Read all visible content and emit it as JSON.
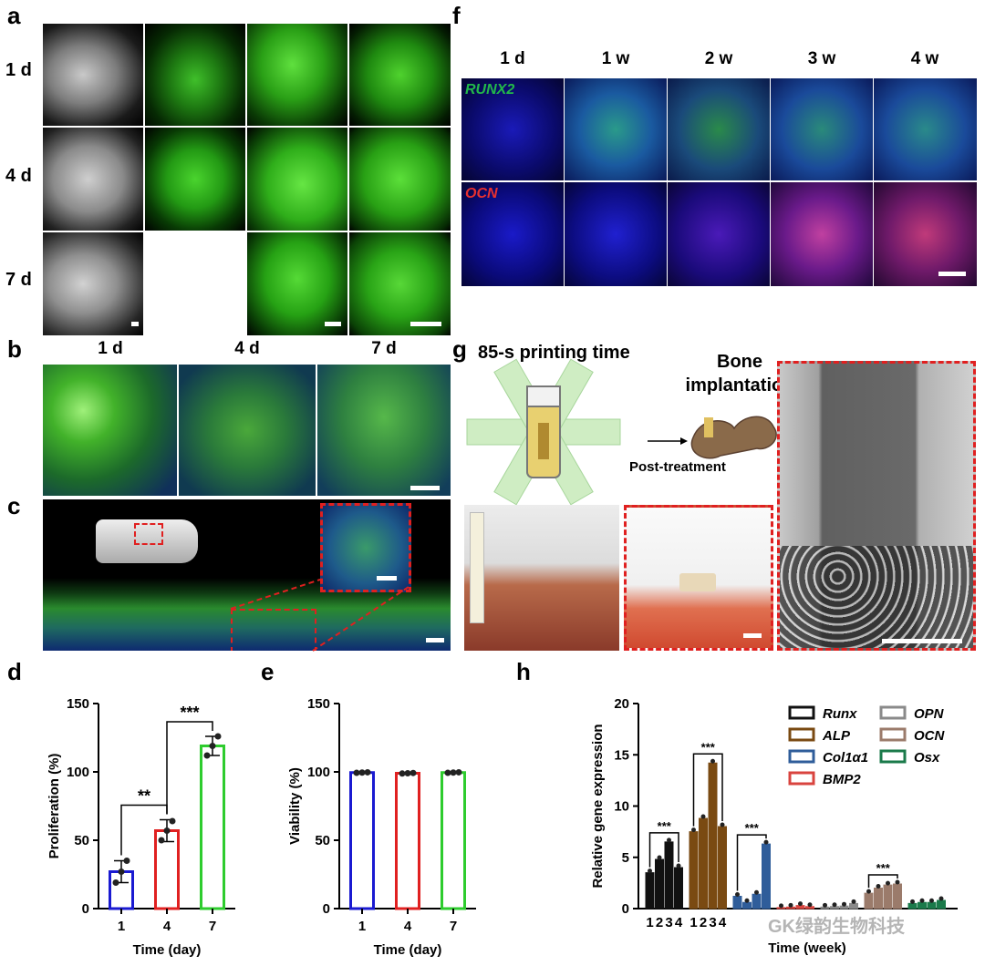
{
  "panels": {
    "a": {
      "label": "a",
      "rows": [
        "1 d",
        "4 d",
        "7 d"
      ]
    },
    "b": {
      "label": "b",
      "cols": [
        "1 d",
        "4 d",
        "7 d"
      ]
    },
    "c": {
      "label": "c"
    },
    "f": {
      "label": "f",
      "cols": [
        "1 d",
        "1 w",
        "2 w",
        "3 w",
        "4 w"
      ],
      "rows": [
        "RUNX2",
        "OCN"
      ]
    },
    "g": {
      "label": "g",
      "title": "85-s printing time",
      "implant_line1": "Bone",
      "implant_line2": "implantation",
      "post": "Post-treatment"
    },
    "d": {
      "label": "d"
    },
    "e": {
      "label": "e"
    },
    "h": {
      "label": "h"
    },
    "watermark": "GK绿韵生物科技"
  },
  "chart_data": [
    {
      "type": "bar",
      "panel": "d",
      "categories": [
        "1",
        "4",
        "7"
      ],
      "values": [
        27,
        57,
        119
      ],
      "errors": [
        8,
        8,
        7
      ],
      "points": [
        [
          19,
          27,
          35
        ],
        [
          50,
          57,
          64
        ],
        [
          112,
          119,
          126
        ]
      ],
      "colors": [
        "#1a1ad1",
        "#e02020",
        "#2ecc2e"
      ],
      "xlabel": "Time (day)",
      "ylabel": "Proliferation (%)",
      "ylim": [
        0,
        150
      ],
      "yticks": [
        "0",
        "50",
        "100",
        "150"
      ],
      "significance": [
        {
          "from": "1",
          "to": "4",
          "label": "**"
        },
        {
          "from": "4",
          "to": "7",
          "label": "***"
        }
      ]
    },
    {
      "type": "bar",
      "panel": "e",
      "categories": [
        "1",
        "4",
        "7"
      ],
      "values": [
        99.5,
        99,
        99.5
      ],
      "points": [
        [
          99.3,
          99.5,
          99.7
        ],
        [
          98.8,
          99,
          99.2
        ],
        [
          99.3,
          99.5,
          99.7
        ]
      ],
      "colors": [
        "#1a1ad1",
        "#e02020",
        "#2ecc2e"
      ],
      "xlabel": "Time (day)",
      "ylabel": "Viability (%)",
      "ylim": [
        0,
        150
      ],
      "yticks": [
        "0",
        "50",
        "100",
        "150"
      ]
    },
    {
      "type": "bar",
      "panel": "h",
      "xlabel": "Time (week)",
      "ylabel": "Relative gene expression",
      "ylim": [
        0,
        20
      ],
      "yticks": [
        "0",
        "5",
        "10",
        "15",
        "20"
      ],
      "week_labels": [
        "1",
        "2",
        "3",
        "4"
      ],
      "series": [
        {
          "name": "Runx",
          "color": "#111111",
          "values": [
            3.5,
            4.8,
            6.5,
            4.0
          ]
        },
        {
          "name": "ALP",
          "color": "#7a4a12",
          "values": [
            7.5,
            8.8,
            14.2,
            8.0
          ]
        },
        {
          "name": "Col1α1",
          "color": "#2f5d9a",
          "values": [
            1.2,
            0.6,
            1.4,
            6.3
          ]
        },
        {
          "name": "BMP2",
          "color": "#d9443f",
          "values": [
            0.1,
            0.15,
            0.3,
            0.2
          ]
        },
        {
          "name": "OPN",
          "color": "#8a8a8a",
          "values": [
            0.15,
            0.2,
            0.25,
            0.5
          ]
        },
        {
          "name": "OCN",
          "color": "#9b7b6b",
          "values": [
            1.5,
            2.0,
            2.3,
            2.4
          ]
        },
        {
          "name": "Osx",
          "color": "#1a7a4a",
          "values": [
            0.5,
            0.6,
            0.6,
            0.8
          ]
        }
      ],
      "significance": [
        {
          "series": "Runx",
          "label": "***"
        },
        {
          "series": "ALP",
          "label": "***"
        },
        {
          "series": "Col1α1",
          "label": "***"
        },
        {
          "series": "OCN",
          "label": "***"
        }
      ]
    }
  ]
}
